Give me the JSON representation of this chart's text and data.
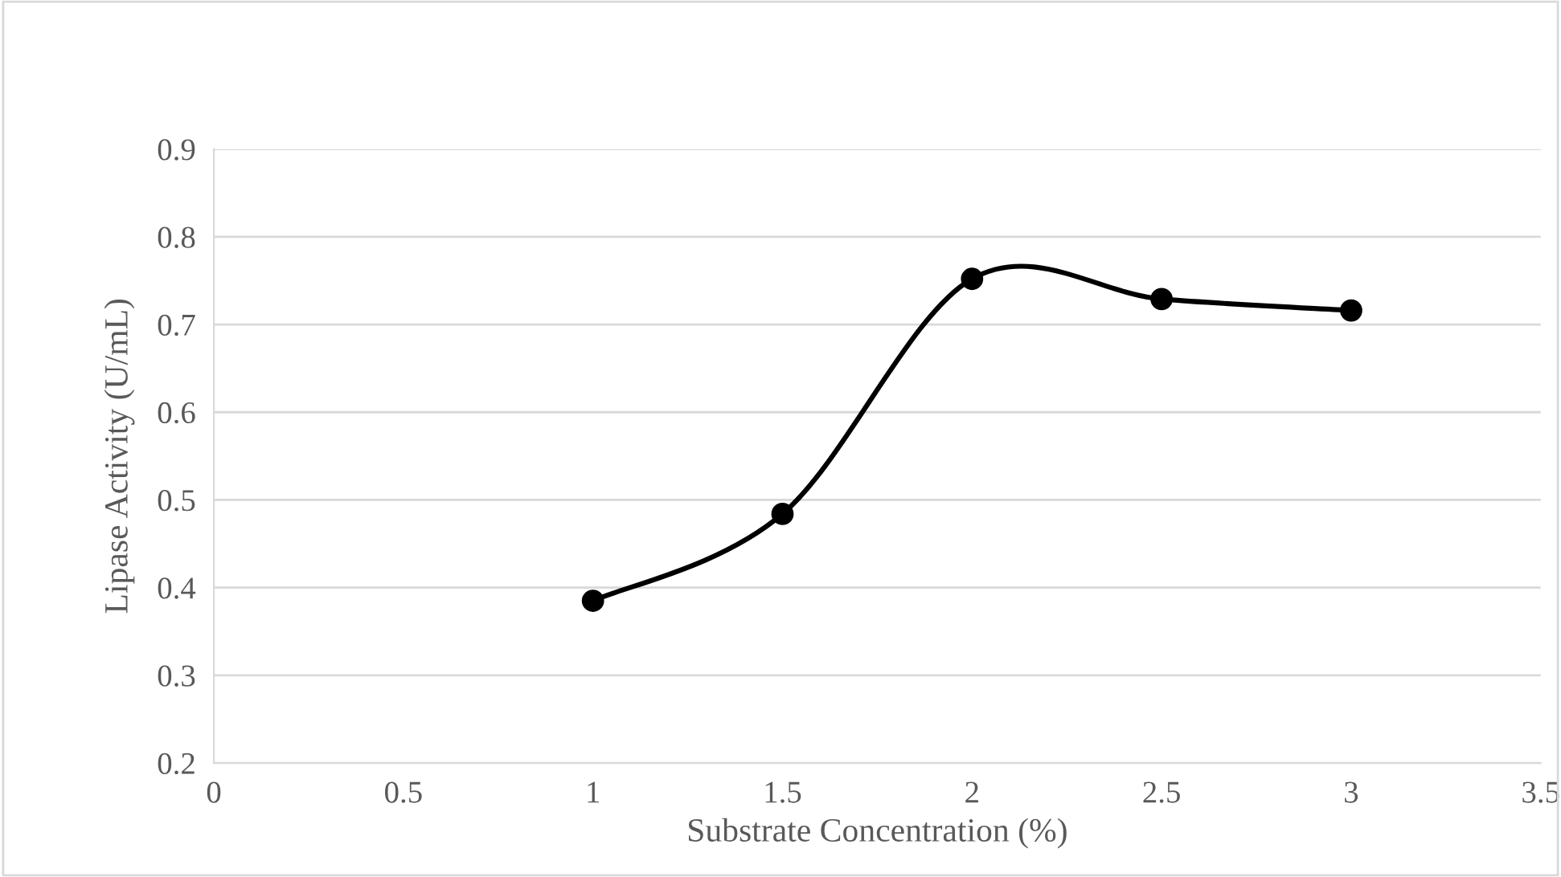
{
  "chart_data": {
    "type": "line",
    "xlabel": "Substrate Concentration (%)",
    "ylabel": "Lipase Activity (U/mL)",
    "x": [
      1,
      1.5,
      2,
      2.5,
      3
    ],
    "series": [
      {
        "color": "#000000",
        "values": [
          0.385,
          0.484,
          0.752,
          0.729,
          0.716
        ]
      }
    ],
    "xlim": [
      0,
      3.5
    ],
    "xticks": [
      0,
      0.5,
      1,
      1.5,
      2,
      2.5,
      3,
      3.5
    ],
    "ylim": [
      0.2,
      0.9
    ],
    "yticks": [
      0.2,
      0.3,
      0.4,
      0.5,
      0.6,
      0.7,
      0.8,
      0.9
    ],
    "grid": "y",
    "marker": "circle",
    "line_style": "solid"
  }
}
